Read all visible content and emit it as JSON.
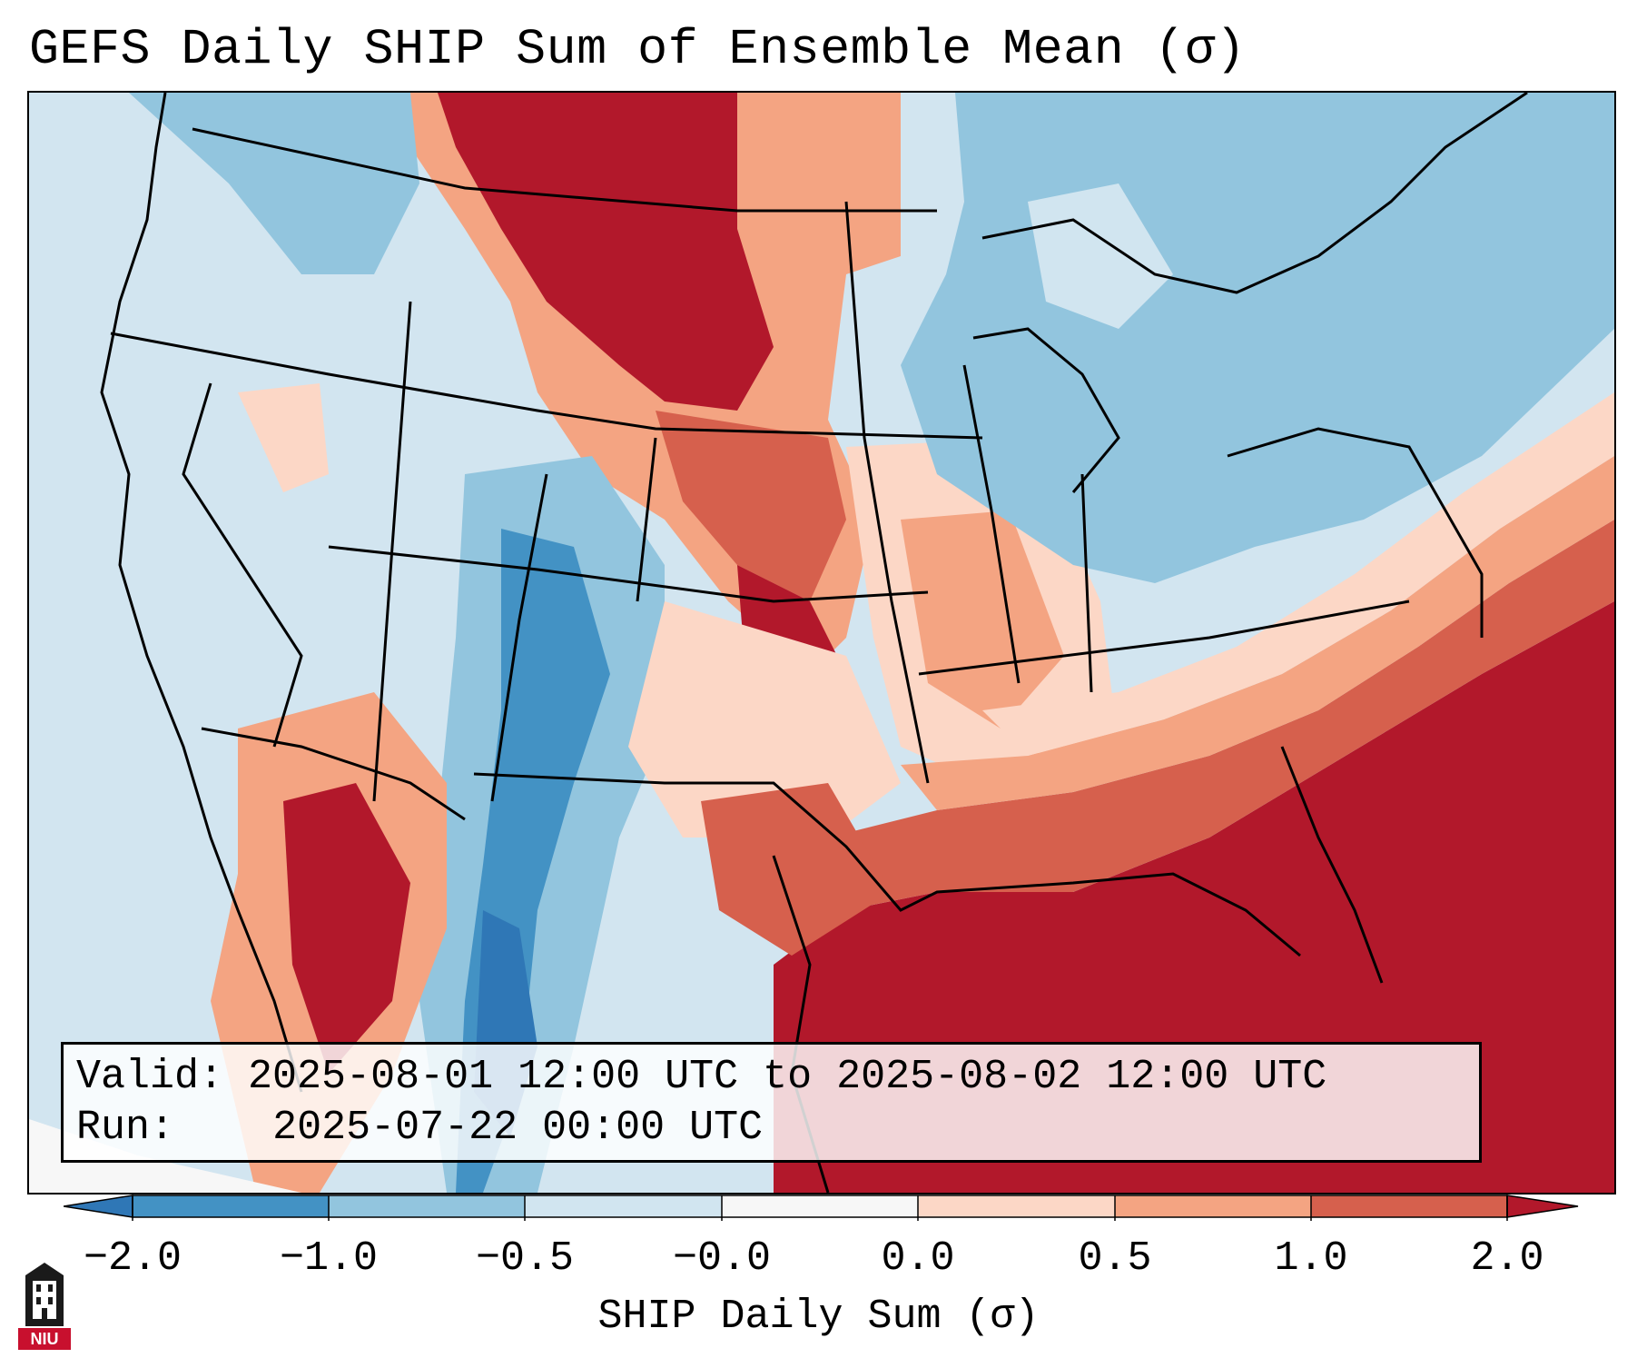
{
  "title": "GEFS Daily SHIP Sum of Ensemble Mean (σ)",
  "info": {
    "valid_label": "Valid:",
    "valid_value": "2025-08-01 12:00 UTC to 2025-08-02 12:00 UTC",
    "run_label": "Run:",
    "run_value": "2025-07-22 00:00 UTC"
  },
  "colorbar": {
    "label": "SHIP Daily Sum (σ)",
    "ticks": [
      "−2.0",
      "−1.0",
      "−0.5",
      "−0.0",
      "0.0",
      "0.5",
      "1.0",
      "2.0"
    ],
    "colors": [
      "#2f77b6",
      "#4392c4",
      "#92c5de",
      "#d1e5f0",
      "#f7f7f7",
      "#fcd7c6",
      "#f4a482",
      "#d6604d",
      "#b2182b"
    ],
    "ocean_color": "#d2e5f0"
  },
  "logo": {
    "icon": "niu-logo-icon",
    "text": "NIU"
  }
}
